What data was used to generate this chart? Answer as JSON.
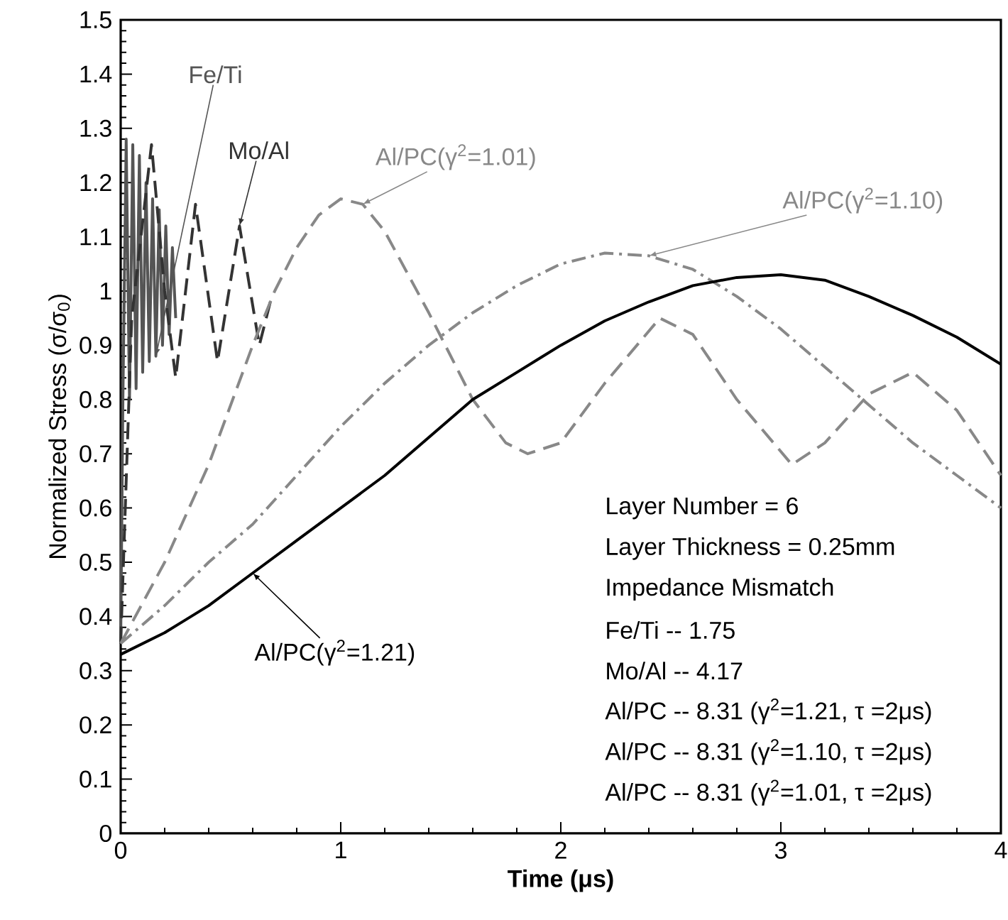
{
  "chart_data": {
    "type": "line",
    "xlabel": "Time (μs)",
    "ylabel": "Normalized Stress (σ/σ$_{0}$)",
    "xlim": [
      0,
      4
    ],
    "ylim": [
      0,
      1.5
    ],
    "xticks": [
      0,
      1,
      2,
      3,
      4
    ],
    "yticks": [
      0,
      0.1,
      0.2,
      0.3,
      0.4,
      0.5,
      0.6,
      0.7,
      0.8,
      0.9,
      1,
      1.1,
      1.2,
      1.3,
      1.4,
      1.5
    ],
    "marker": "none",
    "series": [
      {
        "name": "Fe/Ti",
        "color": "#555555",
        "line_style": "solid",
        "x": [
          0,
          0.01,
          0.025,
          0.04,
          0.055,
          0.07,
          0.085,
          0.1,
          0.115,
          0.13,
          0.145,
          0.16,
          0.175,
          0.19,
          0.205,
          0.22,
          0.235,
          0.25
        ],
        "values": [
          0.35,
          0.8,
          1.28,
          0.8,
          1.27,
          0.82,
          1.25,
          0.85,
          1.2,
          0.87,
          1.17,
          0.88,
          1.15,
          0.9,
          1.12,
          0.92,
          1.08,
          0.95
        ]
      },
      {
        "name": "Mo/Al",
        "color": "#333333",
        "line_style": "dashed",
        "x": [
          0,
          0.05,
          0.14,
          0.2,
          0.25,
          0.34,
          0.44,
          0.54,
          0.63,
          0.68
        ],
        "values": [
          0.35,
          0.95,
          1.27,
          1.0,
          0.84,
          1.16,
          0.87,
          1.12,
          0.9,
          0.98
        ]
      },
      {
        "name": "Al/PC(γ$^{2}$=1.01)",
        "color": "#888888",
        "line_style": "dashed",
        "x": [
          0,
          0.2,
          0.4,
          0.6,
          0.7,
          0.8,
          0.9,
          1.0,
          1.1,
          1.2,
          1.4,
          1.6,
          1.75,
          1.85,
          2.0,
          2.2,
          2.45,
          2.6,
          2.8,
          3.05,
          3.2,
          3.4,
          3.6,
          3.8,
          4.0
        ],
        "values": [
          0.35,
          0.5,
          0.68,
          0.9,
          1.0,
          1.08,
          1.14,
          1.17,
          1.16,
          1.11,
          0.96,
          0.8,
          0.72,
          0.7,
          0.72,
          0.83,
          0.95,
          0.92,
          0.8,
          0.68,
          0.72,
          0.81,
          0.85,
          0.78,
          0.66
        ]
      },
      {
        "name": "Al/PC(γ$^{2}$=1.10)",
        "color": "#888888",
        "line_style": "dashdot",
        "x": [
          0,
          0.2,
          0.4,
          0.6,
          0.8,
          1.0,
          1.2,
          1.4,
          1.6,
          1.8,
          2.0,
          2.2,
          2.4,
          2.6,
          2.8,
          3.0,
          3.2,
          3.4,
          3.6,
          3.8,
          4.0
        ],
        "values": [
          0.35,
          0.42,
          0.5,
          0.57,
          0.66,
          0.75,
          0.83,
          0.9,
          0.96,
          1.01,
          1.05,
          1.07,
          1.065,
          1.04,
          0.99,
          0.93,
          0.86,
          0.79,
          0.72,
          0.66,
          0.6
        ]
      },
      {
        "name": "Al/PC(γ$^{2}$=1.21)",
        "color": "#000000",
        "line_style": "solid",
        "x": [
          0,
          0.2,
          0.4,
          0.6,
          0.8,
          1.0,
          1.2,
          1.4,
          1.6,
          1.8,
          2.0,
          2.2,
          2.4,
          2.6,
          2.8,
          3.0,
          3.2,
          3.4,
          3.6,
          3.8,
          4.0
        ],
        "values": [
          0.33,
          0.37,
          0.42,
          0.48,
          0.54,
          0.6,
          0.66,
          0.73,
          0.8,
          0.85,
          0.9,
          0.945,
          0.98,
          1.01,
          1.025,
          1.03,
          1.02,
          0.99,
          0.955,
          0.915,
          0.865
        ]
      }
    ],
    "annotations": [
      "Layer Number = 6",
      "Layer Thickness = 0.25mm",
      "Impedance Mismatch",
      "Fe/Ti  -- 1.75",
      "Mo/Al  -- 4.17",
      "Al/PC  -- 8.31 (γ$^{2}$=1.21, τ =2μs)",
      "Al/PC  -- 8.31 (γ$^{2}$=1.10, τ =2μs)",
      "Al/PC  -- 8.31 (γ$^{2}$=1.01, τ =2μs)"
    ]
  }
}
